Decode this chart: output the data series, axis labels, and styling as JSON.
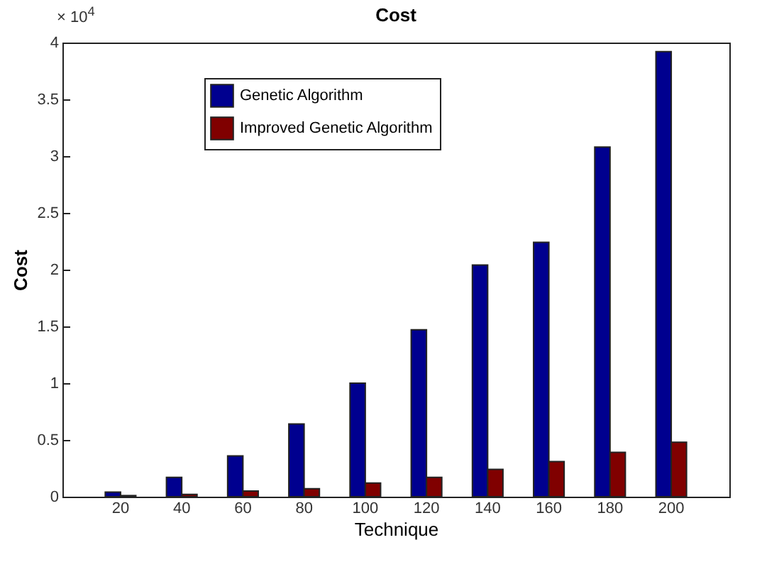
{
  "chart_data": {
    "type": "bar",
    "title": "Cost",
    "xlabel": "Technique",
    "ylabel": "Cost",
    "categories": [
      "20",
      "40",
      "60",
      "80",
      "100",
      "120",
      "140",
      "160",
      "180",
      "200"
    ],
    "series": [
      {
        "name": "Genetic Algorithm",
        "color": "#00008f",
        "values": [
          0.04,
          0.17,
          0.36,
          0.64,
          1.0,
          1.47,
          2.04,
          2.24,
          3.08,
          3.92
        ]
      },
      {
        "name": "Improved Genetic Algorithm",
        "color": "#800000",
        "values": [
          0.01,
          0.02,
          0.05,
          0.07,
          0.12,
          0.17,
          0.24,
          0.31,
          0.39,
          0.48
        ]
      }
    ],
    "ylim": [
      0,
      4
    ],
    "yticks": [
      0,
      0.5,
      1,
      1.5,
      2,
      2.5,
      3,
      3.5,
      4
    ],
    "annotations": [
      "× 10$^{4}$"
    ],
    "legend": "top left"
  }
}
